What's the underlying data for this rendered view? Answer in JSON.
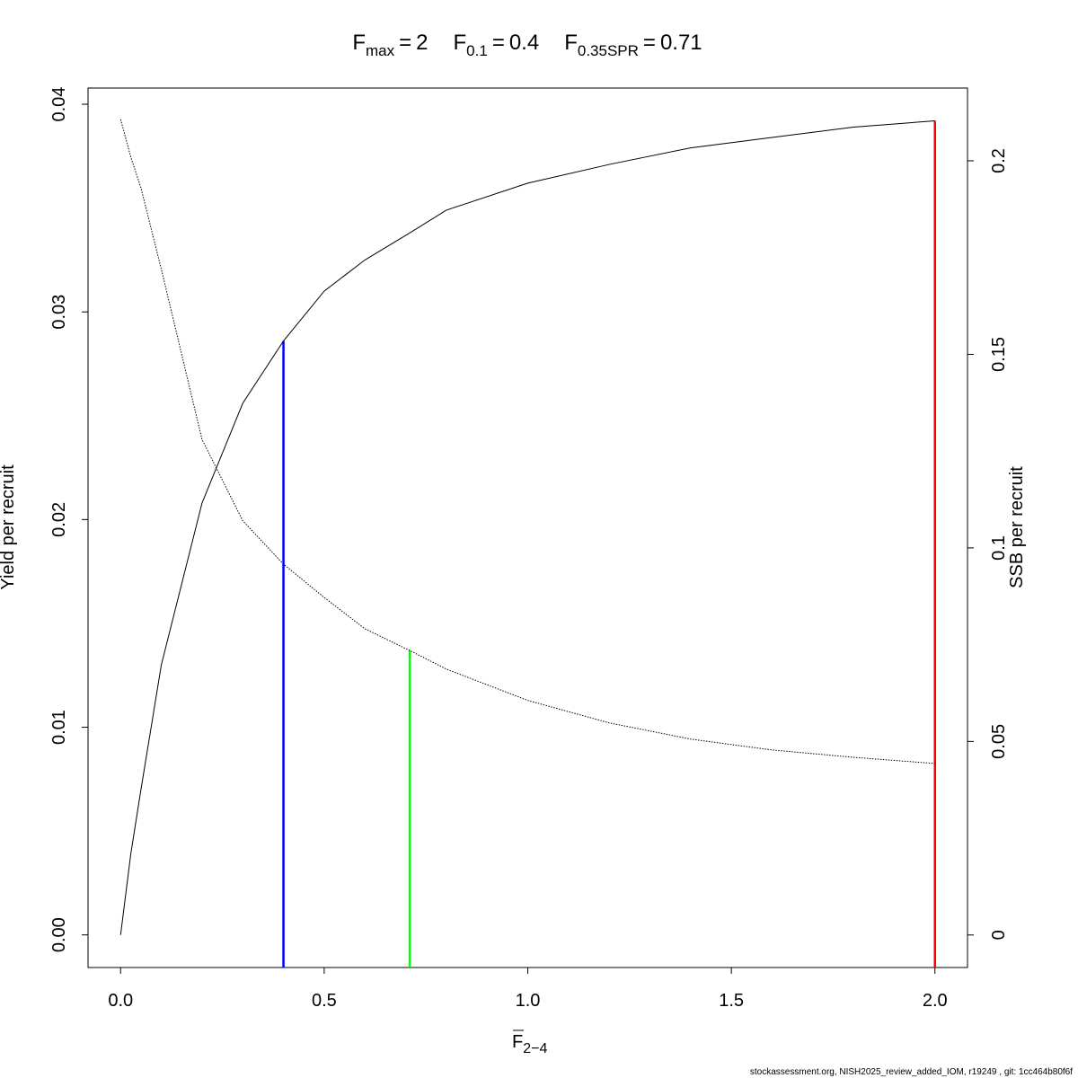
{
  "chart_data": {
    "type": "line",
    "title": [
      {
        "symbol": "F",
        "subscript": "max",
        "operator": "=",
        "value": 2
      },
      {
        "symbol": "F",
        "subscript": "0.1",
        "operator": "=",
        "value": 0.4
      },
      {
        "symbol": "F",
        "subscript": "0.35SPR",
        "operator": "=",
        "value": 0.71
      }
    ],
    "xlabel": {
      "symbol": "F",
      "subscript": "2−4"
    },
    "ylabel": "Yield per recruit",
    "y2label": "SSB per recruit",
    "x": [
      0,
      0.025,
      0.05,
      0.1,
      0.2,
      0.3,
      0.4,
      0.5,
      0.6,
      0.71,
      0.8,
      1.0,
      1.2,
      1.4,
      1.6,
      1.8,
      2.0
    ],
    "series": [
      {
        "name": "Yield per recruit",
        "color": "#000000",
        "dash": "solid",
        "values": [
          0,
          0.0039,
          0.007,
          0.013,
          0.0208,
          0.0256,
          0.0286,
          0.031,
          0.0325,
          0.0338,
          0.0349,
          0.0362,
          0.0371,
          0.0379,
          0.0384,
          0.0389,
          0.0392
        ]
      },
      {
        "name": "SSB per recruit",
        "color": "#000000",
        "dash": "dotted",
        "axis": "y2",
        "values": [
          0.2107,
          0.201,
          0.193,
          0.172,
          0.128,
          0.107,
          0.0958,
          0.0872,
          0.0791,
          0.0735,
          0.0687,
          0.0606,
          0.0548,
          0.0506,
          0.0478,
          0.0459,
          0.0443
        ]
      }
    ],
    "reference_lines": [
      {
        "color": "#ff0000",
        "top": 0.0392,
        "axis": "y"
      },
      {
        "color": "#0000ff",
        "top": 0.0286,
        "axis": "y"
      },
      {
        "color": "#00ff00",
        "top": 0.0735,
        "axis": "y2"
      }
    ],
    "xlim": [
      -0.08,
      2.08
    ],
    "xticks": [
      {
        "value": 0,
        "label": "0.0"
      },
      0.5,
      {
        "value": 1,
        "label": "1.0"
      },
      1.5,
      {
        "value": 2,
        "label": "2.0"
      }
    ],
    "ylim": [
      -0.00157,
      0.04078
    ],
    "yticks": [
      {
        "value": 0,
        "label": "0.00"
      },
      0.01,
      0.02,
      0.03,
      0.04
    ],
    "y2lim": [
      -0.0084,
      0.2188
    ],
    "y2ticks": [
      0,
      0.05,
      0.1,
      0.15,
      0.2
    ],
    "footer": "stockassessment.org, NISH2025_review_added_IOM, r19249 , git: 1cc464b80f6f"
  }
}
